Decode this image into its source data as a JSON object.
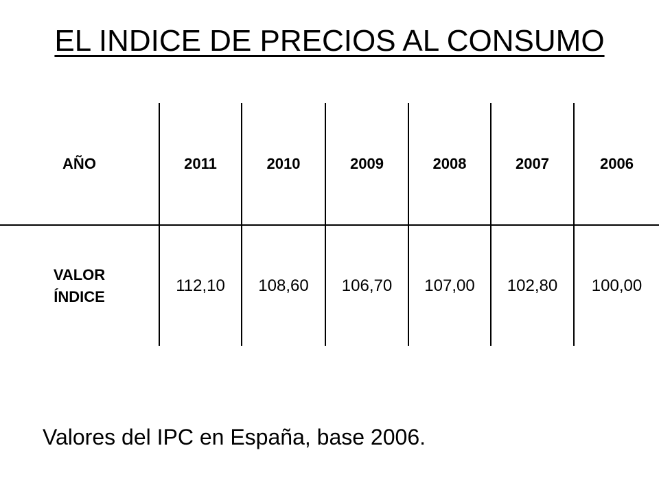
{
  "title": "EL INDICE DE PRECIOS AL CONSUMO",
  "table": {
    "header_label": "AÑO",
    "row_label": "VALOR ÍNDICE",
    "years": [
      "2011",
      "2010",
      "2009",
      "2008",
      "2007",
      "2006"
    ],
    "values": [
      "112,10",
      "108,60",
      "106,70",
      "107,00",
      "102,80",
      "100,00"
    ]
  },
  "caption": "Valores del IPC en España,  base 2006."
}
